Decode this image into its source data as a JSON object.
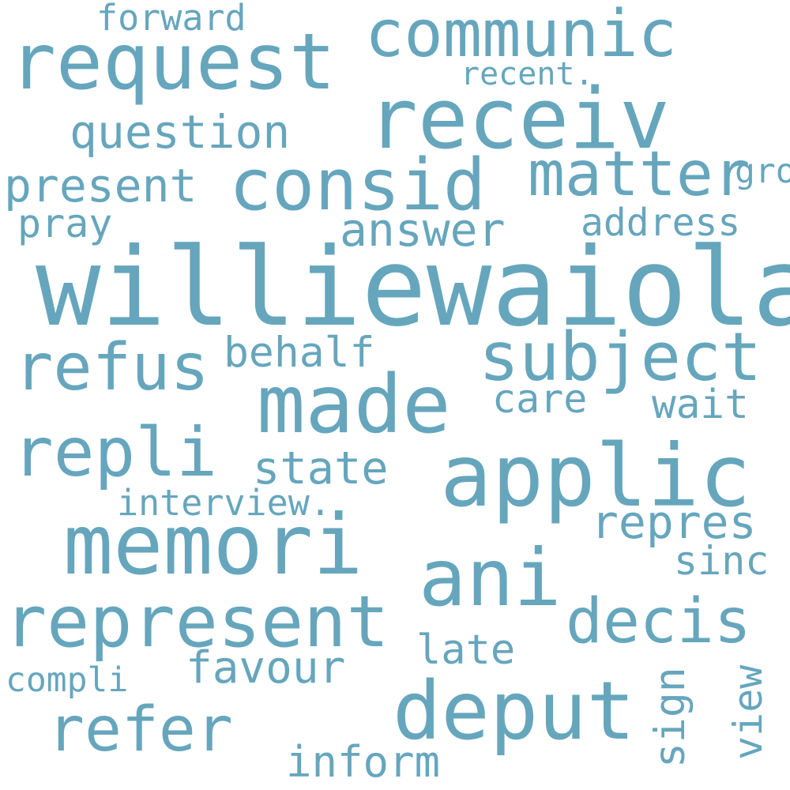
{
  "color": "#66a6bd",
  "words": {
    "williewaiola": "williewaiola",
    "receiv": "receiv",
    "request": "request",
    "communic": "communic",
    "consid": "consid",
    "matter": "matter",
    "applic": "applic",
    "memori": "memori",
    "represent": "represent",
    "made": "made",
    "subject": "subject",
    "refus": "refus",
    "repli": "repli",
    "ani": "ani",
    "deput": "deput",
    "refer": "refer",
    "decis": "decis",
    "question": "question",
    "present": "present",
    "forward": "forward",
    "recent": "recent.",
    "ground": "ground",
    "pray": "pray",
    "answer": "answer",
    "address": "address",
    "behalf": "behalf",
    "care": "care",
    "wait": "wait",
    "state": "state",
    "interview": "interview.",
    "repres": "repres",
    "sinc": "sinc",
    "late": "late",
    "favour": "favour",
    "compli": "compli",
    "sign": "sign",
    "view": "view",
    "inform": "inform"
  }
}
